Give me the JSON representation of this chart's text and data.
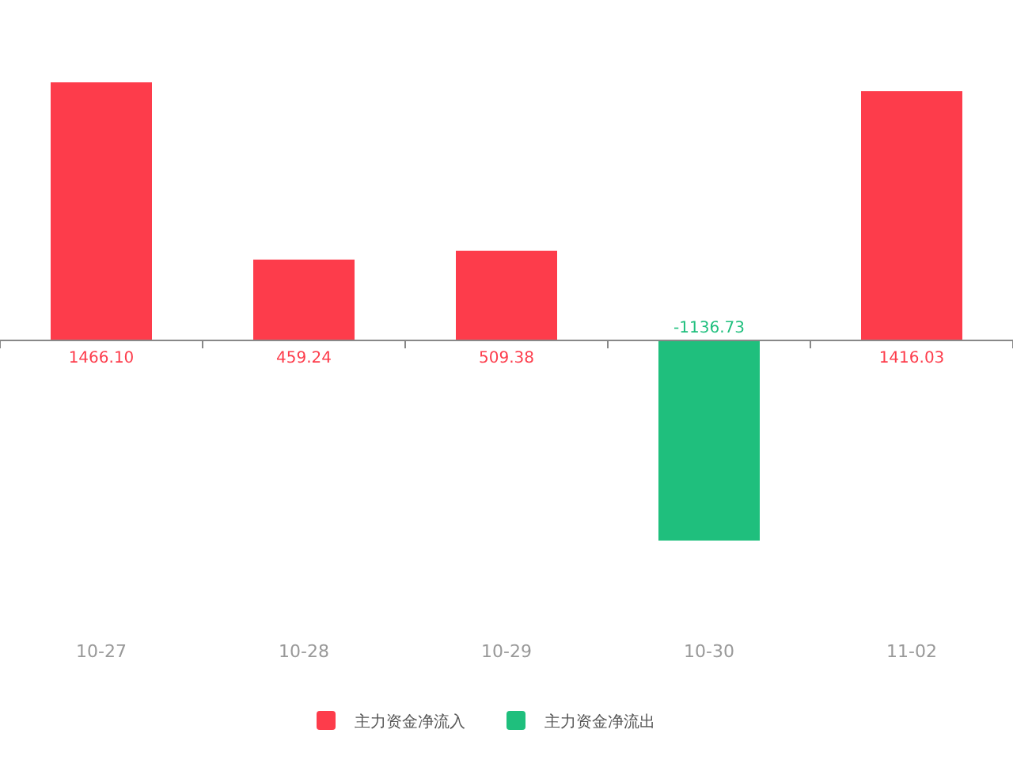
{
  "chart_data": {
    "type": "bar",
    "stacked": true,
    "categories": [
      "10-27",
      "10-28",
      "10-29",
      "10-30",
      "11-02"
    ],
    "series": [
      {
        "name": "主力资金净流入",
        "color": "#fd3c4b",
        "values": [
          1466.1,
          459.24,
          509.38,
          null,
          1416.03
        ],
        "value_labels": [
          "1466.10",
          "459.24",
          "509.38",
          null,
          "1416.03"
        ]
      },
      {
        "name": "主力资金净流出",
        "color": "#1fbf7d",
        "values": [
          null,
          null,
          null,
          -1136.73,
          null
        ],
        "value_labels": [
          null,
          null,
          null,
          "-1136.73",
          null
        ]
      }
    ],
    "legend": "bottom"
  }
}
